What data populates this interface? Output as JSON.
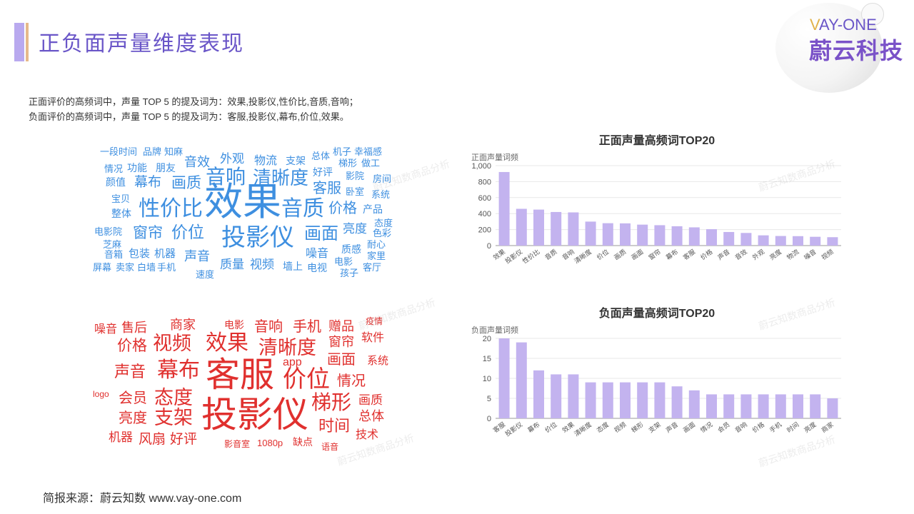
{
  "header": {
    "title": "正负面声量维度表现",
    "logo_en_v": "V",
    "logo_en_rest": "AY-ONE",
    "logo_cn": "蔚云科技"
  },
  "summary": {
    "line1": "正面评价的高频词中，声量 TOP 5 的提及词为：效果,投影仪,性价比,音质,音响；",
    "line2": "负面评价的高频词中，声量 TOP 5 的提及词为：客服,投影仪,幕布,价位,效果。"
  },
  "word_cloud_positive": [
    "一段时间",
    "品牌",
    "知麻",
    "情况",
    "功能",
    "朋友",
    "音效",
    "外观",
    "物流",
    "支架",
    "总体",
    "机子",
    "幸福感",
    "梯形",
    "做工",
    "颜值",
    "幕布",
    "画质",
    "音响",
    "清晰度",
    "好评",
    "影院",
    "房间",
    "宝贝",
    "客服",
    "卧室",
    "系统",
    "整体",
    "性价比",
    "效果",
    "音质",
    "价格",
    "产品",
    "电影院",
    "窗帘",
    "价位",
    "投影仪",
    "画面",
    "亮度",
    "态度",
    "色彩",
    "芝麻",
    "质感",
    "耐心",
    "音箱",
    "包装",
    "机器",
    "声音",
    "噪音",
    "家里",
    "屏幕",
    "卖家",
    "白墙",
    "手机",
    "质量",
    "视频",
    "墙上",
    "电视",
    "电影",
    "客厅",
    "速度",
    "孩子"
  ],
  "word_cloud_negative": [
    "噪音",
    "售后",
    "商家",
    "电影",
    "音响",
    "手机",
    "赠品",
    "疫情",
    "价格",
    "视频",
    "效果",
    "清晰度",
    "窗帘",
    "软件",
    "app",
    "画面",
    "系统",
    "声音",
    "幕布",
    "客服",
    "价位",
    "情况",
    "logo",
    "会员",
    "态度",
    "梯形",
    "画质",
    "亮度",
    "支架",
    "投影仪",
    "总体",
    "时间",
    "机器",
    "风扇",
    "好评",
    "技术",
    "影音室",
    "1080p",
    "缺点",
    "语音"
  ],
  "watermark_text": "蔚云知数商品分析",
  "chart_data": [
    {
      "type": "bar",
      "title": "正面声量高频词TOP20",
      "ylabel": "正面声量词频",
      "categories": [
        "效果",
        "投影仪",
        "性价比",
        "音质",
        "音响",
        "清晰度",
        "价位",
        "画质",
        "画面",
        "窗帘",
        "幕布",
        "客服",
        "价格",
        "声音",
        "音效",
        "外观",
        "亮度",
        "物流",
        "噪音",
        "视频"
      ],
      "values": [
        920,
        460,
        450,
        420,
        415,
        300,
        280,
        278,
        262,
        255,
        242,
        228,
        205,
        170,
        158,
        128,
        120,
        118,
        110,
        105
      ],
      "ylim": [
        0,
        1000
      ],
      "yticks": [
        "0",
        "200",
        "400",
        "600",
        "800",
        "1,000"
      ],
      "bar_color": "#c3b3ef",
      "grid": true
    },
    {
      "type": "bar",
      "title": "负面声量高频词TOP20",
      "ylabel": "负面声量词频",
      "categories": [
        "客服",
        "投影仪",
        "幕布",
        "价位",
        "效果",
        "清晰度",
        "态度",
        "视频",
        "梯形",
        "支架",
        "声音",
        "画面",
        "情况",
        "会员",
        "音响",
        "价格",
        "手机",
        "时间",
        "亮度",
        "商家"
      ],
      "values": [
        20,
        19,
        12,
        11,
        11,
        9,
        9,
        9,
        9,
        9,
        8,
        7,
        6,
        6,
        6,
        6,
        6,
        6,
        6,
        5
      ],
      "ylim": [
        0,
        20
      ],
      "yticks": [
        "0",
        "5",
        "10",
        "15",
        "20"
      ],
      "bar_color": "#c3b3ef",
      "grid": true
    }
  ],
  "footer": {
    "source": "简报来源：蔚云知数 www.vay-one.com"
  }
}
